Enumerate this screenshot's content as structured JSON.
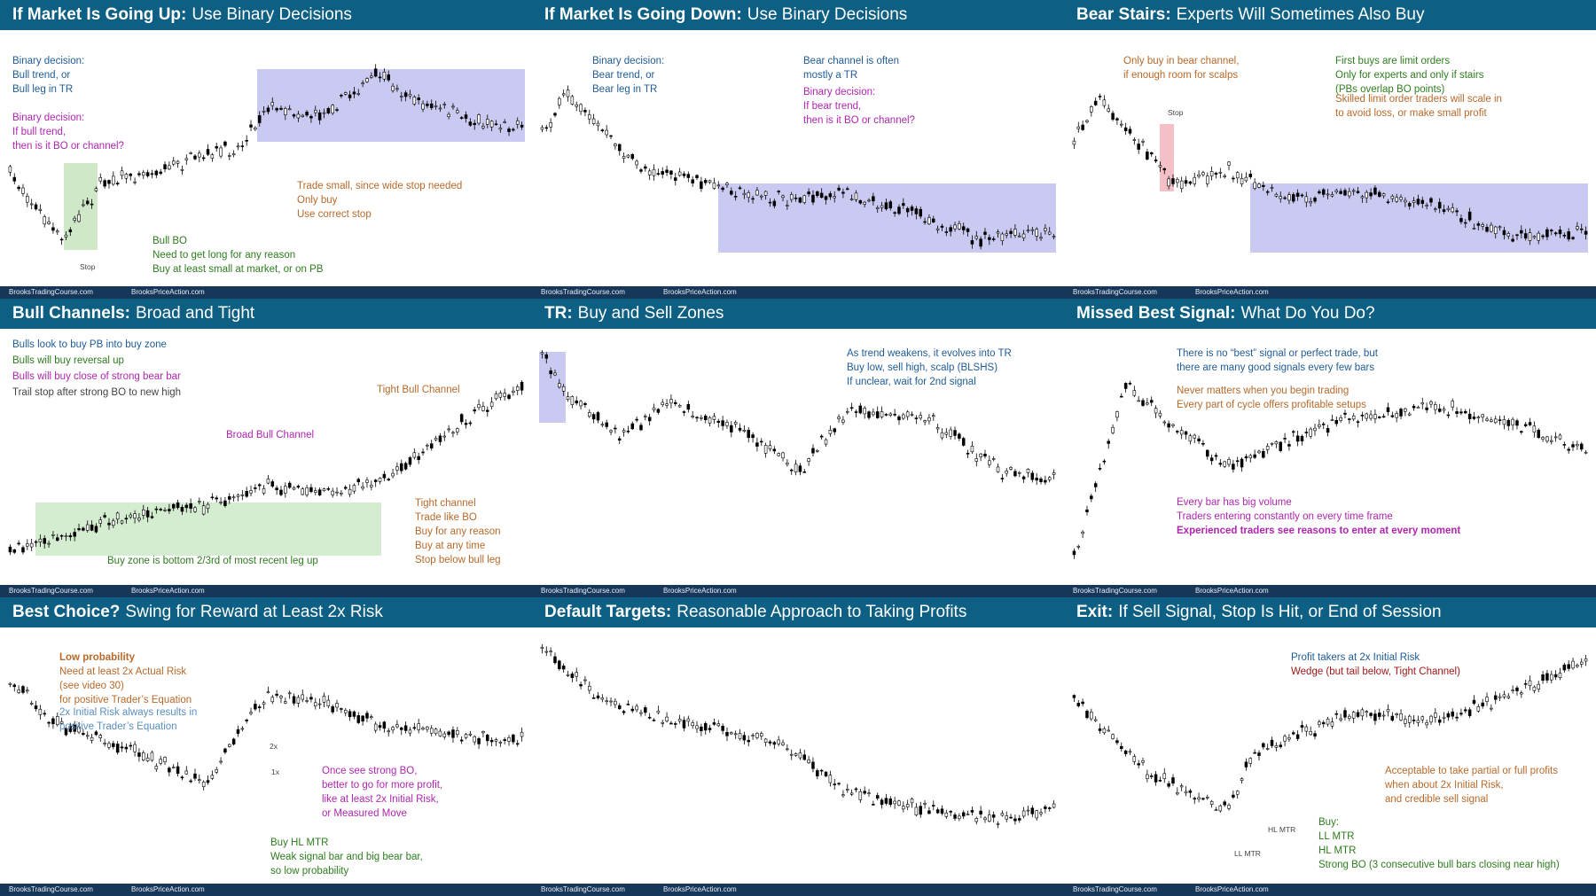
{
  "footer": [
    "BrooksTradingCourse.com",
    "BrooksPriceAction.com"
  ],
  "panels": [
    {
      "title_bold": "If Market Is Going Up:",
      "title_rest": "Use Binary Decisions",
      "notes": [
        [
          "Binary decision:",
          "Bull trend, or",
          "Bull leg in TR"
        ],
        [
          "Binary decision:",
          "If bull trend,",
          "then is it BO or channel?"
        ],
        [
          "Trade small, since wide stop needed",
          "Only buy",
          "Use correct stop"
        ],
        [
          "Bull BO",
          "Need to get long for any reason",
          "Buy at least small at market, or on PB"
        ],
        [
          "Stop"
        ]
      ]
    },
    {
      "title_bold": "If Market Is Going Down:",
      "title_rest": "Use Binary Decisions",
      "notes": [
        [
          "Binary decision:",
          "Bear trend, or",
          "Bear leg in TR"
        ],
        [
          "Bear channel is often",
          "mostly a TR"
        ],
        [
          "Binary decision:",
          "If bear trend,",
          "then is it BO or channel?"
        ]
      ]
    },
    {
      "title_bold": "Bear Stairs:",
      "title_rest": "Experts Will Sometimes Also Buy",
      "notes": [
        [
          "Only buy in bear channel,",
          "if enough room for scalps"
        ],
        [
          "First buys are limit orders",
          "Only for experts and only if stairs",
          "(PBs overlap BO points)"
        ],
        [
          "Skilled limit order traders will scale in",
          "to avoid loss, or make small profit"
        ],
        [
          "Stop"
        ]
      ]
    },
    {
      "title_bold": "Bull Channels:",
      "title_rest": "Broad and Tight",
      "notes": [
        [
          "Bulls look to buy PB into buy zone"
        ],
        [
          "Bulls will buy reversal up"
        ],
        [
          "Bulls will buy close of strong bear bar"
        ],
        [
          "Trail stop after strong BO to new high"
        ],
        [
          "Broad Bull Channel"
        ],
        [
          "Tight Bull Channel"
        ],
        [
          "Tight channel",
          "Trade like BO",
          "Buy for any reason",
          "Buy at any time",
          "Stop below bull leg"
        ],
        [
          "Buy zone is bottom 2/3rd of most recent leg up"
        ]
      ]
    },
    {
      "title_bold": "TR:",
      "title_rest": "Buy and Sell Zones",
      "notes": [
        [
          "As trend weakens, it evolves into TR",
          "Buy low, sell high, scalp (BLSHS)",
          "If unclear, wait for 2nd signal"
        ]
      ]
    },
    {
      "title_bold": "Missed Best Signal:",
      "title_rest": "What Do You Do?",
      "notes": [
        [
          "There is no “best” signal or perfect trade, but",
          "there are many good signals every few bars"
        ],
        [
          "Never matters when you begin trading",
          "Every part of cycle offers profitable setups"
        ],
        [
          "Every bar has big volume",
          "Traders entering constantly on every time frame",
          "Experienced traders see reasons to enter at every moment"
        ]
      ]
    },
    {
      "title_bold": "Best Choice?",
      "title_rest": "Swing for Reward at Least 2x Risk",
      "notes": [
        [
          "Low probability",
          "Need at least 2x Actual Risk",
          "(see video 30)",
          "for positive Trader’s Equation"
        ],
        [
          "2x Initial Risk always results in",
          "positive Trader’s Equation"
        ],
        [
          "Once see strong BO,",
          "better to go for more profit,",
          "like at least 2x Initial Risk,",
          "or Measured Move"
        ],
        [
          "Buy HL MTR",
          "Weak signal bar and big bear bar,",
          "so low probability"
        ],
        [
          "2x"
        ],
        [
          "1x"
        ]
      ]
    },
    {
      "title_bold": "Default Targets:",
      "title_rest": "Reasonable Approach to Taking Profits",
      "notes": []
    },
    {
      "title_bold": "Exit:",
      "title_rest": "If Sell Signal, Stop Is Hit, or End of Session",
      "notes": [
        [
          "Profit takers at 2x Initial Risk"
        ],
        [
          "Wedge (but tail below, Tight Channel)"
        ],
        [
          "Acceptable to take partial or full profits",
          "when about 2x Initial Risk,",
          "and credible sell signal"
        ],
        [
          "Buy:",
          "LL MTR",
          "HL MTR",
          "Strong BO (3 consecutive bull bars closing near high)"
        ],
        [
          "HL MTR"
        ],
        [
          "LL MTR"
        ]
      ]
    }
  ]
}
